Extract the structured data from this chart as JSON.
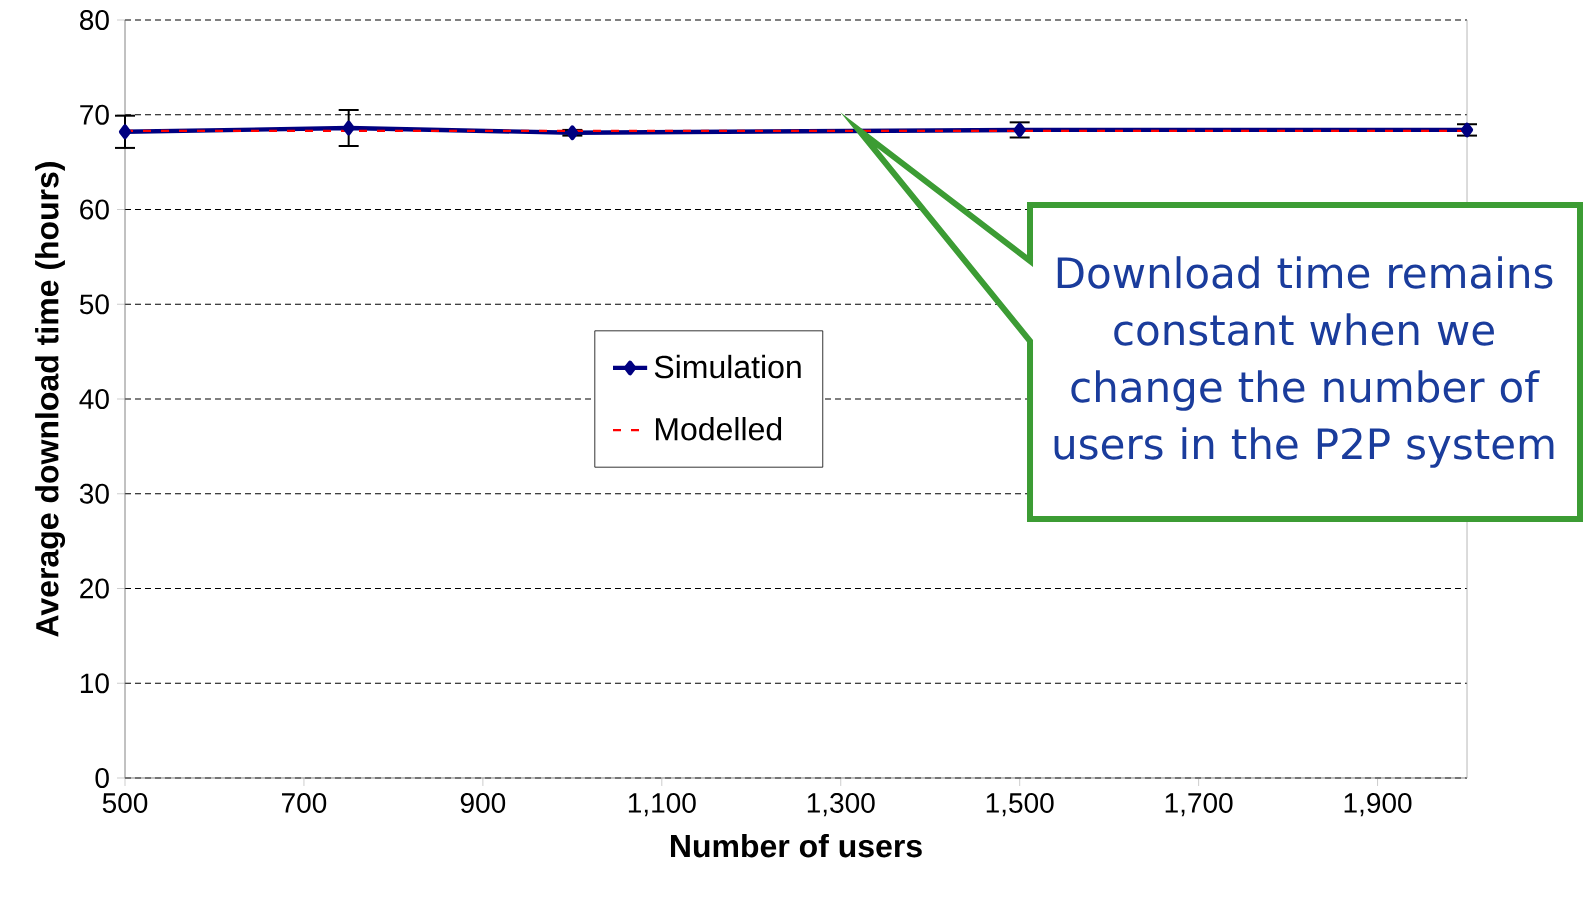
{
  "chart_data": {
    "type": "line",
    "xlabel": "Number of users",
    "ylabel": "Average download time (hours)",
    "x": [
      500,
      750,
      1000,
      1500,
      2000
    ],
    "series": [
      {
        "name": "Simulation",
        "color": "#000080",
        "line_style": "solid",
        "marker": "diamond",
        "values": [
          68.2,
          68.6,
          68.1,
          68.4,
          68.4
        ],
        "errors": [
          1.7,
          1.9,
          0.3,
          0.8,
          0.6
        ]
      },
      {
        "name": "Modelled",
        "color": "#ff0000",
        "line_style": "dashed",
        "marker": "none",
        "values": [
          68.3,
          68.3,
          68.3,
          68.3,
          68.3
        ]
      }
    ],
    "xlim": [
      500,
      2000
    ],
    "ylim": [
      0,
      80
    ],
    "xticks": [
      500,
      700,
      900,
      {
        "value": 1100,
        "label": "1,100"
      },
      {
        "value": 1300,
        "label": "1,300"
      },
      {
        "value": 1500,
        "label": "1,500"
      },
      {
        "value": 1700,
        "label": "1,700"
      },
      {
        "value": 1900,
        "label": "1,900"
      }
    ],
    "yticks": [
      0,
      10,
      20,
      30,
      40,
      50,
      60,
      70,
      80
    ],
    "grid": "y",
    "legend": "center",
    "annotations": [
      "Download time remains constant when we change the number of users in the P2P system"
    ]
  }
}
